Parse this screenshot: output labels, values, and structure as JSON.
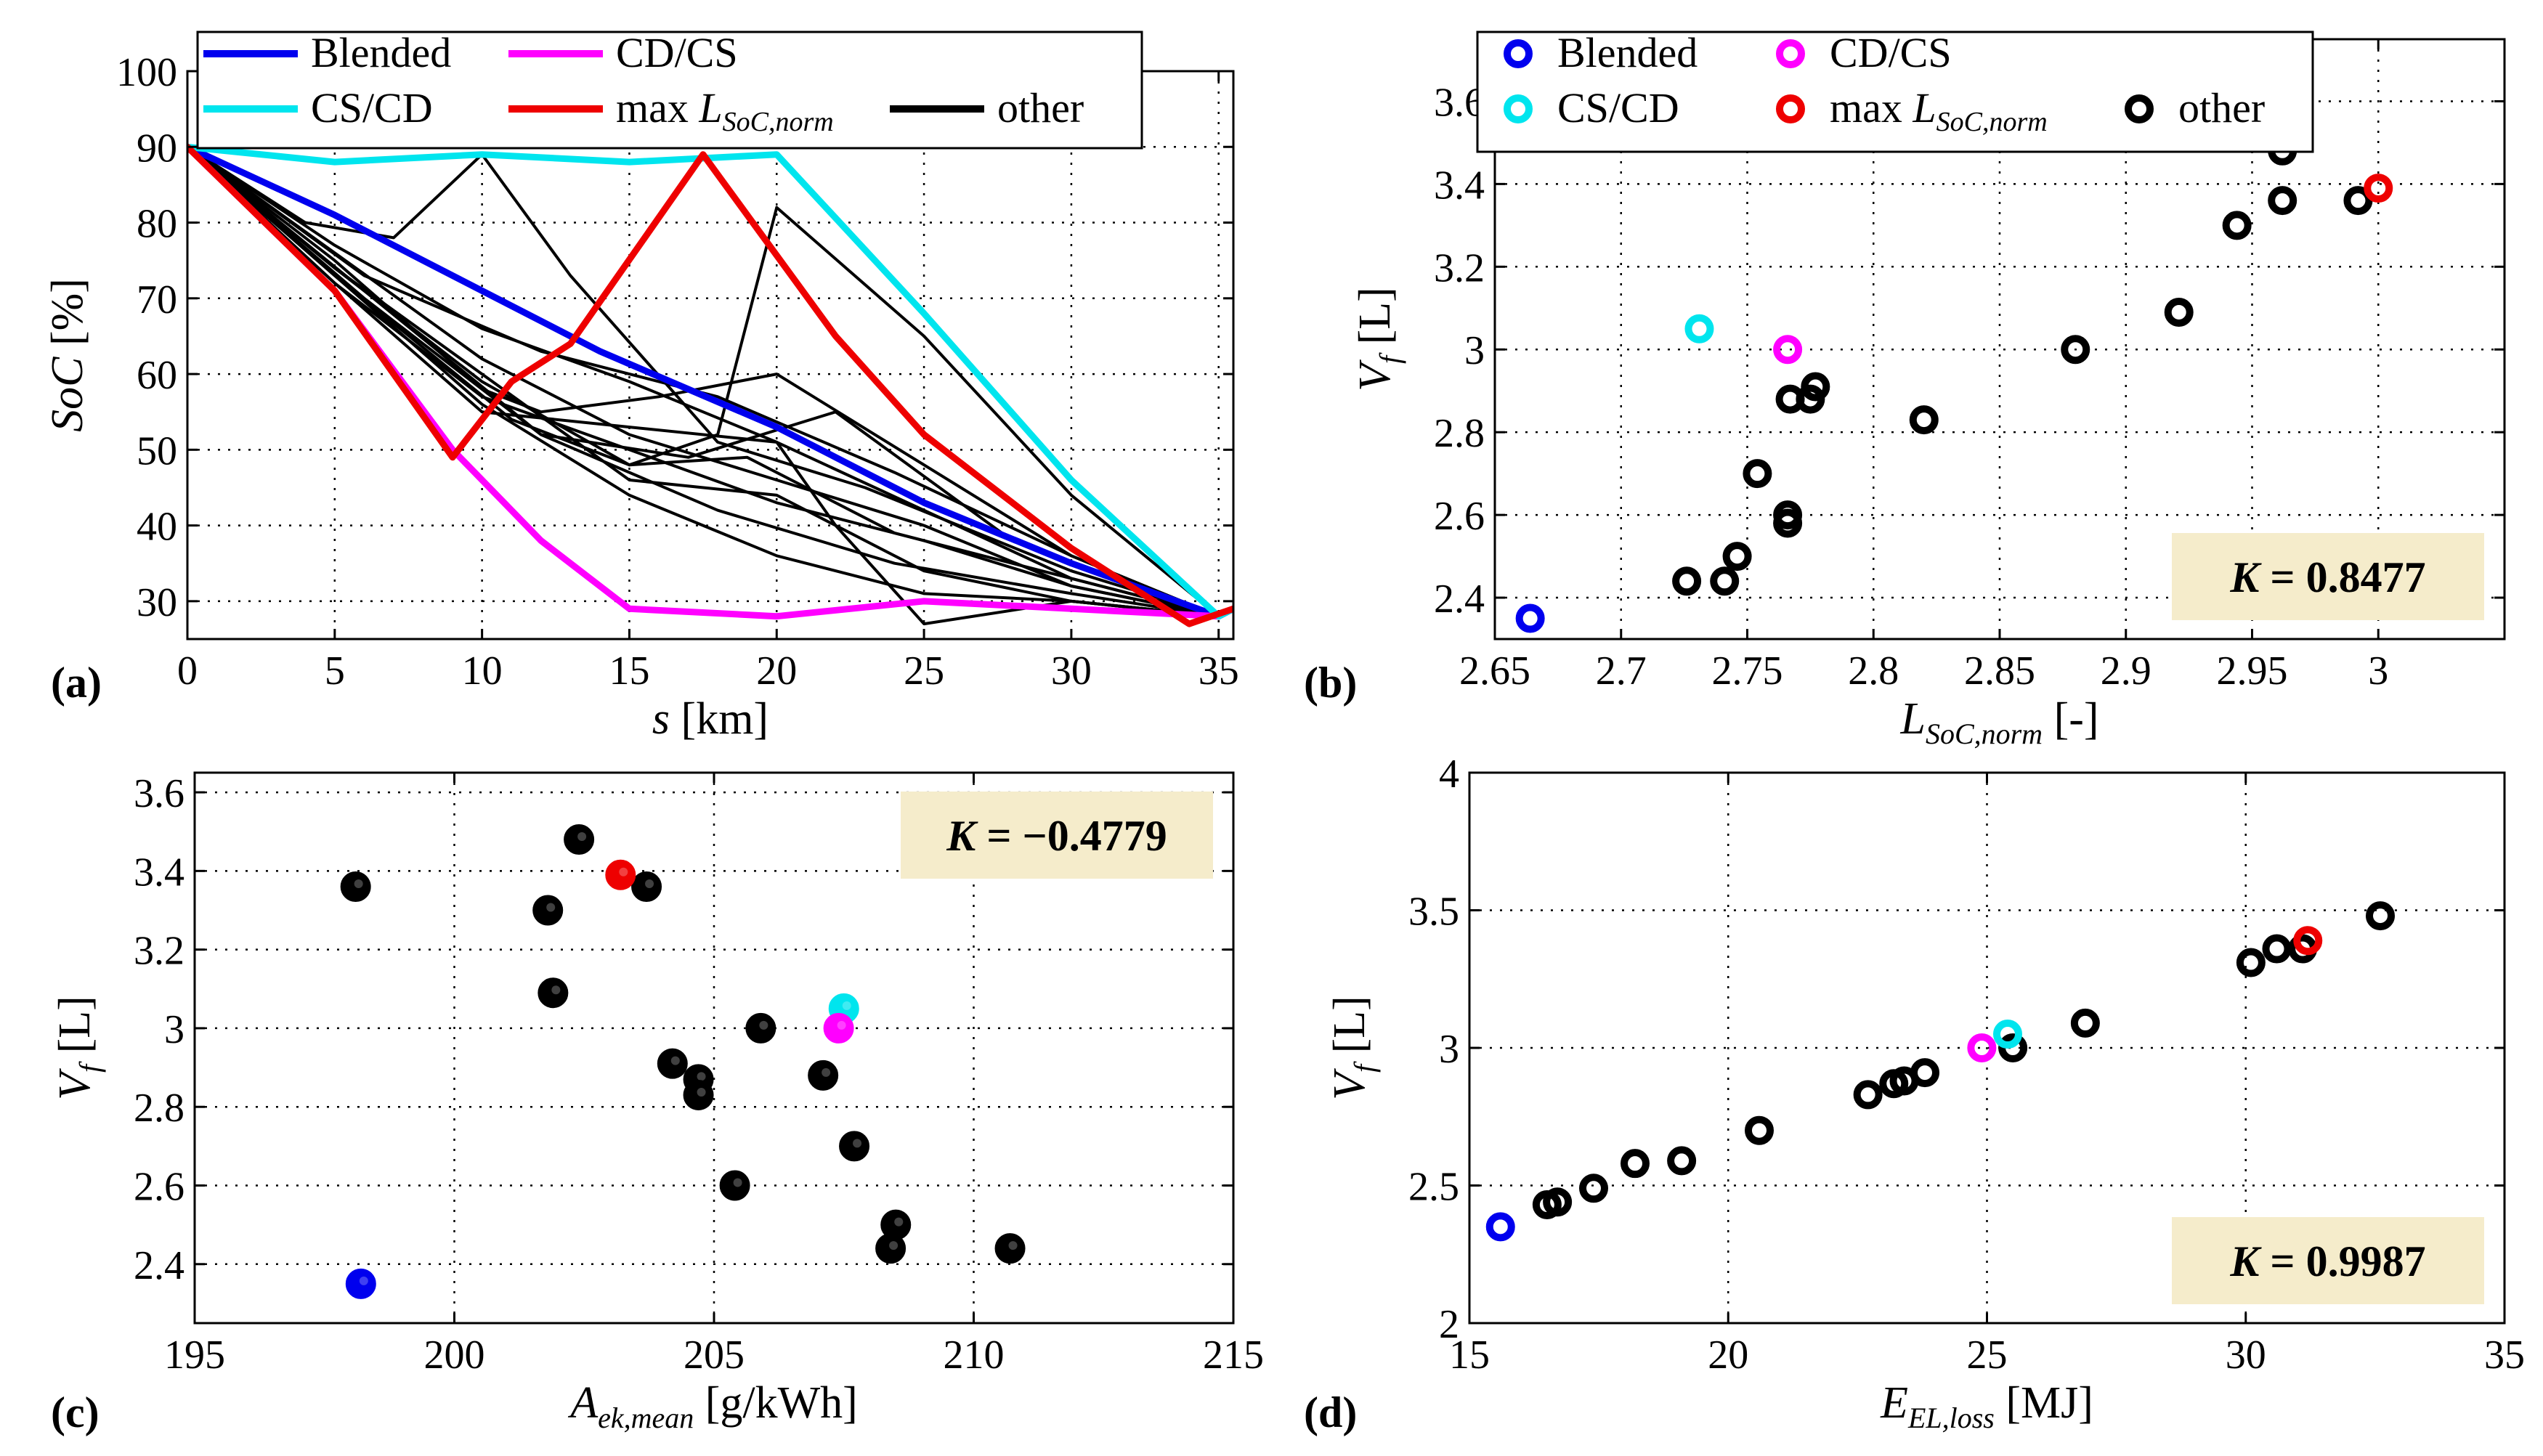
{
  "figure": {
    "colors": {
      "blended": "#0000ee",
      "cd_cs": "#ff00ff",
      "cs_cd": "#00e5ee",
      "max": "#ee0000",
      "other": "#000000",
      "kbox": "#f5eccb"
    }
  },
  "chart_data": [
    {
      "id": "a",
      "type": "line",
      "panel_label": "(a)",
      "xlabel": "s [km]",
      "xlabel_parts": [
        "s",
        " [km]"
      ],
      "ylabel": "SoC [%]",
      "ylabel_parts": [
        "SoC",
        " [%]"
      ],
      "xlim": [
        0,
        35.5
      ],
      "ylim": [
        25,
        100
      ],
      "xticks": [
        0,
        5,
        10,
        15,
        20,
        25,
        30,
        35
      ],
      "yticks": [
        30,
        40,
        50,
        60,
        70,
        80,
        90,
        100
      ],
      "grid": true,
      "legend": {
        "position": "top",
        "entries": [
          {
            "key": "blended",
            "label": "Blended"
          },
          {
            "key": "cd_cs",
            "label": "CD/CS"
          },
          {
            "key": "cs_cd",
            "label": "CS/CD"
          },
          {
            "key": "max",
            "label": "max L",
            "sub": "SoC,norm"
          },
          {
            "key": "other",
            "label": "other"
          }
        ]
      },
      "series": [
        {
          "name": "Blended",
          "key": "blended",
          "x": [
            0,
            5,
            10,
            14,
            20,
            25,
            30,
            35,
            35.5
          ],
          "y": [
            90,
            81,
            71,
            63,
            53,
            43,
            35,
            28,
            29
          ]
        },
        {
          "name": "CD/CS",
          "key": "cd_cs",
          "x": [
            0,
            5,
            9,
            12,
            15,
            20,
            25,
            30,
            35,
            35.5
          ],
          "y": [
            90,
            71,
            50,
            38,
            29,
            28,
            30,
            29,
            28,
            29
          ]
        },
        {
          "name": "CS/CD",
          "key": "cs_cd",
          "x": [
            0,
            5,
            10,
            15,
            20,
            25,
            30,
            35,
            35.5
          ],
          "y": [
            90,
            88,
            89,
            88,
            89,
            68,
            46,
            28,
            29
          ]
        },
        {
          "name": "max L_SoC,norm",
          "key": "max",
          "x": [
            0,
            5,
            9,
            11,
            13,
            17.5,
            22,
            25,
            30,
            34,
            35.5
          ],
          "y": [
            90,
            71,
            49,
            59,
            64,
            89,
            65,
            52,
            37,
            27,
            29
          ]
        },
        {
          "name": "other",
          "key": "other",
          "x": [
            0,
            5,
            10,
            15,
            20,
            25,
            30,
            35
          ],
          "y": [
            90,
            74,
            60,
            46,
            44,
            34,
            30,
            28
          ]
        },
        {
          "name": "other",
          "key": "other",
          "x": [
            0,
            5,
            10,
            15,
            20,
            25,
            30,
            35
          ],
          "y": [
            90,
            72,
            57,
            50,
            43,
            38,
            32,
            28
          ]
        },
        {
          "name": "other",
          "key": "other",
          "x": [
            0,
            5,
            10,
            12,
            16,
            20,
            25,
            30,
            35
          ],
          "y": [
            90,
            75,
            58,
            55,
            57,
            60,
            48,
            36,
            28
          ]
        },
        {
          "name": "other",
          "key": "other",
          "x": [
            0,
            5,
            10,
            15,
            20,
            25,
            30,
            35
          ],
          "y": [
            90,
            77,
            66,
            59,
            51,
            42,
            33,
            28
          ]
        },
        {
          "name": "other",
          "key": "other",
          "x": [
            0,
            4,
            7,
            10,
            13,
            18,
            23,
            30,
            35
          ],
          "y": [
            90,
            80,
            78,
            89,
            73,
            51,
            45,
            34,
            28
          ]
        },
        {
          "name": "other",
          "key": "other",
          "x": [
            0,
            5,
            10,
            15,
            18,
            20,
            25,
            30,
            35
          ],
          "y": [
            90,
            74,
            59,
            48,
            52,
            82,
            65,
            44,
            28
          ]
        },
        {
          "name": "other",
          "key": "other",
          "x": [
            0,
            5,
            10,
            15,
            20,
            22,
            25,
            30,
            35
          ],
          "y": [
            90,
            72,
            55,
            53,
            51,
            40,
            27,
            30,
            28
          ]
        },
        {
          "name": "other",
          "key": "other",
          "x": [
            0,
            5,
            10,
            15,
            20,
            25,
            30,
            35
          ],
          "y": [
            90,
            76,
            62,
            52,
            46,
            40,
            32,
            28
          ]
        },
        {
          "name": "other",
          "key": "other",
          "x": [
            0,
            6,
            12,
            17,
            22,
            28,
            35
          ],
          "y": [
            90,
            70,
            52,
            49,
            55,
            38,
            28
          ]
        },
        {
          "name": "other",
          "key": "other",
          "x": [
            0,
            5,
            10,
            15,
            20,
            25,
            30,
            35
          ],
          "y": [
            90,
            73,
            56,
            44,
            36,
            31,
            30,
            28
          ]
        },
        {
          "name": "other",
          "key": "other",
          "x": [
            0,
            6,
            12,
            18,
            24,
            30,
            35
          ],
          "y": [
            90,
            73,
            63,
            57,
            47,
            36,
            28
          ]
        },
        {
          "name": "other",
          "key": "other",
          "x": [
            0,
            5,
            11,
            15,
            19,
            24,
            30,
            35
          ],
          "y": [
            90,
            73,
            54,
            48,
            49,
            39,
            33,
            28
          ]
        },
        {
          "name": "other",
          "key": "other",
          "x": [
            0,
            6,
            12,
            18,
            24,
            30,
            35
          ],
          "y": [
            90,
            71,
            52,
            42,
            35,
            31,
            28
          ]
        }
      ]
    },
    {
      "id": "b",
      "type": "scatter",
      "panel_label": "(b)",
      "xlabel": "L_SoC,norm [-]",
      "xlabel_parts": [
        "L",
        "SoC,norm",
        " [-]"
      ],
      "ylabel": "V_f [L]",
      "ylabel_parts": [
        "V",
        "f",
        " [L]"
      ],
      "xlim": [
        2.65,
        3.05
      ],
      "ylim": [
        2.3,
        3.75
      ],
      "xticks": [
        2.65,
        2.7,
        2.75,
        2.8,
        2.85,
        2.9,
        2.95,
        3
      ],
      "xtick_labels": [
        "2.65",
        "2.7",
        "2.75",
        "2.8",
        "2.85",
        "2.9",
        "2.95",
        "3"
      ],
      "yticks": [
        2.4,
        2.6,
        2.8,
        3,
        3.2,
        3.4,
        3.6
      ],
      "ytick_labels": [
        "2.4",
        "2.6",
        "2.8",
        "3",
        "3.2",
        "3.4",
        "3.6"
      ],
      "grid": true,
      "marker": "ring",
      "annotation": {
        "prefix": "K",
        "text": " = 0.8477",
        "position": "bottom-right"
      },
      "legend": {
        "position": "top",
        "entries": [
          {
            "key": "blended",
            "label": "Blended"
          },
          {
            "key": "cd_cs",
            "label": "CD/CS"
          },
          {
            "key": "cs_cd",
            "label": "CS/CD"
          },
          {
            "key": "max",
            "label": "max L",
            "sub": "SoC,norm"
          },
          {
            "key": "other",
            "label": "other"
          }
        ]
      },
      "points": [
        {
          "key": "blended",
          "x": 2.664,
          "y": 2.35
        },
        {
          "key": "cs_cd",
          "x": 2.731,
          "y": 3.05
        },
        {
          "key": "cd_cs",
          "x": 2.766,
          "y": 3.0
        },
        {
          "key": "max",
          "x": 3.0,
          "y": 3.39
        },
        {
          "key": "other",
          "x": 2.726,
          "y": 2.44
        },
        {
          "key": "other",
          "x": 2.741,
          "y": 2.44
        },
        {
          "key": "other",
          "x": 2.746,
          "y": 2.5
        },
        {
          "key": "other",
          "x": 2.766,
          "y": 2.58
        },
        {
          "key": "other",
          "x": 2.766,
          "y": 2.6
        },
        {
          "key": "other",
          "x": 2.754,
          "y": 2.7
        },
        {
          "key": "other",
          "x": 2.767,
          "y": 2.88
        },
        {
          "key": "other",
          "x": 2.775,
          "y": 2.88
        },
        {
          "key": "other",
          "x": 2.777,
          "y": 2.91
        },
        {
          "key": "other",
          "x": 2.82,
          "y": 2.83
        },
        {
          "key": "other",
          "x": 2.88,
          "y": 3.0
        },
        {
          "key": "other",
          "x": 2.921,
          "y": 3.09
        },
        {
          "key": "other",
          "x": 2.944,
          "y": 3.3
        },
        {
          "key": "other",
          "x": 2.962,
          "y": 3.36
        },
        {
          "key": "other",
          "x": 2.962,
          "y": 3.48
        },
        {
          "key": "other",
          "x": 2.992,
          "y": 3.36
        }
      ]
    },
    {
      "id": "c",
      "type": "scatter",
      "panel_label": "(c)",
      "xlabel": "A_ek,mean [g/kWh]",
      "xlabel_parts": [
        "A",
        "ek,mean",
        " [g/kWh]"
      ],
      "ylabel": "V_f [L]",
      "ylabel_parts": [
        "V",
        "f",
        " [L]"
      ],
      "xlim": [
        195,
        215
      ],
      "ylim": [
        2.25,
        3.65
      ],
      "xticks": [
        195,
        200,
        205,
        210,
        215
      ],
      "xtick_labels": [
        "195",
        "200",
        "205",
        "210",
        "215"
      ],
      "yticks": [
        2.4,
        2.6,
        2.8,
        3,
        3.2,
        3.4,
        3.6
      ],
      "ytick_labels": [
        "2.4",
        "2.6",
        "2.8",
        "3",
        "3.2",
        "3.4",
        "3.6"
      ],
      "grid": true,
      "marker": "dot",
      "annotation": {
        "prefix": "K",
        "text": " = −0.4779",
        "position": "top-right"
      },
      "points": [
        {
          "key": "blended",
          "x": 198.2,
          "y": 2.35
        },
        {
          "key": "cs_cd",
          "x": 207.5,
          "y": 3.05
        },
        {
          "key": "cd_cs",
          "x": 207.4,
          "y": 3.0
        },
        {
          "key": "max",
          "x": 203.2,
          "y": 3.39
        },
        {
          "key": "other",
          "x": 198.1,
          "y": 3.36
        },
        {
          "key": "other",
          "x": 201.8,
          "y": 3.3
        },
        {
          "key": "other",
          "x": 201.9,
          "y": 3.09
        },
        {
          "key": "other",
          "x": 202.4,
          "y": 3.48
        },
        {
          "key": "other",
          "x": 203.7,
          "y": 3.36
        },
        {
          "key": "other",
          "x": 204.2,
          "y": 2.91
        },
        {
          "key": "other",
          "x": 204.7,
          "y": 2.87
        },
        {
          "key": "other",
          "x": 204.7,
          "y": 2.83
        },
        {
          "key": "other",
          "x": 205.4,
          "y": 2.6
        },
        {
          "key": "other",
          "x": 205.9,
          "y": 3.0
        },
        {
          "key": "other",
          "x": 207.1,
          "y": 2.88
        },
        {
          "key": "other",
          "x": 207.7,
          "y": 2.7
        },
        {
          "key": "other",
          "x": 208.4,
          "y": 2.44
        },
        {
          "key": "other",
          "x": 208.5,
          "y": 2.5
        },
        {
          "key": "other",
          "x": 210.7,
          "y": 2.44
        }
      ]
    },
    {
      "id": "d",
      "type": "scatter",
      "panel_label": "(d)",
      "xlabel": "E_EL,loss [MJ]",
      "xlabel_parts": [
        "E",
        "EL,loss",
        " [MJ]"
      ],
      "ylabel": "V_f [L]",
      "ylabel_parts": [
        "V",
        "f",
        " [L]"
      ],
      "xlim": [
        15,
        35
      ],
      "ylim": [
        2,
        4
      ],
      "xticks": [
        15,
        20,
        25,
        30,
        35
      ],
      "xtick_labels": [
        "15",
        "20",
        "25",
        "30",
        "35"
      ],
      "yticks": [
        2,
        2.5,
        3,
        3.5,
        4
      ],
      "ytick_labels": [
        "2",
        "2.5",
        "3",
        "3.5",
        "4"
      ],
      "grid": true,
      "marker": "ring",
      "annotation": {
        "prefix": "K",
        "text": " = 0.9987",
        "position": "bottom-right"
      },
      "points": [
        {
          "key": "other",
          "x": 16.5,
          "y": 2.43
        },
        {
          "key": "other",
          "x": 16.7,
          "y": 2.44
        },
        {
          "key": "other",
          "x": 17.4,
          "y": 2.49
        },
        {
          "key": "other",
          "x": 18.2,
          "y": 2.58
        },
        {
          "key": "other",
          "x": 19.1,
          "y": 2.59
        },
        {
          "key": "other",
          "x": 20.6,
          "y": 2.7
        },
        {
          "key": "other",
          "x": 22.7,
          "y": 2.83
        },
        {
          "key": "other",
          "x": 23.2,
          "y": 2.87
        },
        {
          "key": "other",
          "x": 23.4,
          "y": 2.88
        },
        {
          "key": "other",
          "x": 23.8,
          "y": 2.91
        },
        {
          "key": "other",
          "x": 25.5,
          "y": 3.0
        },
        {
          "key": "other",
          "x": 26.9,
          "y": 3.09
        },
        {
          "key": "other",
          "x": 30.1,
          "y": 3.31
        },
        {
          "key": "other",
          "x": 30.6,
          "y": 3.36
        },
        {
          "key": "other",
          "x": 31.1,
          "y": 3.36
        },
        {
          "key": "other",
          "x": 32.6,
          "y": 3.48
        },
        {
          "key": "blended",
          "x": 15.6,
          "y": 2.35
        },
        {
          "key": "cd_cs",
          "x": 24.9,
          "y": 3.0
        },
        {
          "key": "cs_cd",
          "x": 25.4,
          "y": 3.05
        },
        {
          "key": "max",
          "x": 31.2,
          "y": 3.39
        }
      ]
    }
  ]
}
